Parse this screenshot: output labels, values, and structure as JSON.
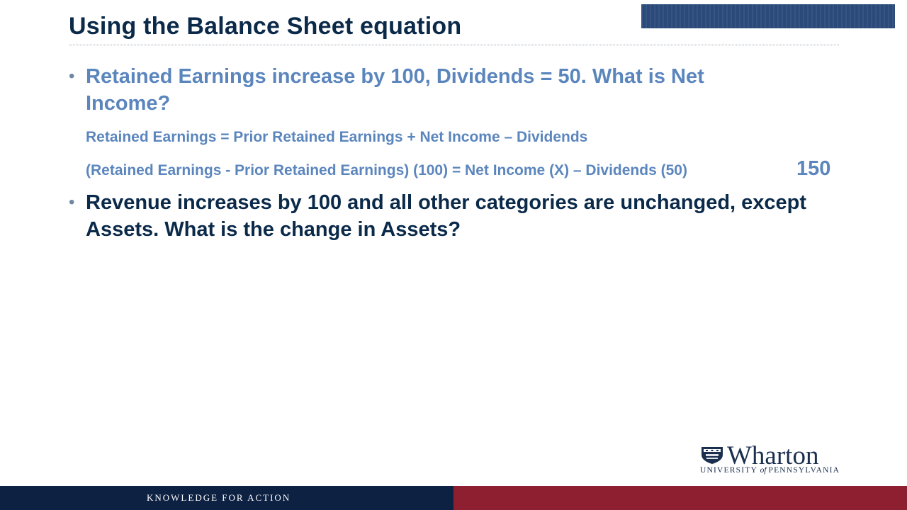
{
  "slide": {
    "title": "Using the Balance Sheet equation",
    "bullets": [
      {
        "text": "Retained Earnings increase by 100, Dividends = 50.  What is Net Income?"
      },
      {
        "text": "Revenue increases by 100 and all other categories are unchanged, except Assets.  What is the change in Assets?"
      }
    ],
    "sub_lines": [
      "Retained Earnings = Prior Retained Earnings + Net Income – Dividends",
      "(Retained Earnings - Prior Retained Earnings) (100) = Net Income (X) – Dividends (50)"
    ],
    "answer": "150"
  },
  "logo": {
    "name": "Wharton",
    "subtitle": "University of Pennsylvania"
  },
  "footer": {
    "tagline": "KNOWLEDGE FOR ACTION"
  },
  "colors": {
    "navy": "#0b2a4a",
    "light_blue_text": "#5b86bd",
    "footer_navy": "#0d2142",
    "footer_red": "#8e1f31"
  }
}
